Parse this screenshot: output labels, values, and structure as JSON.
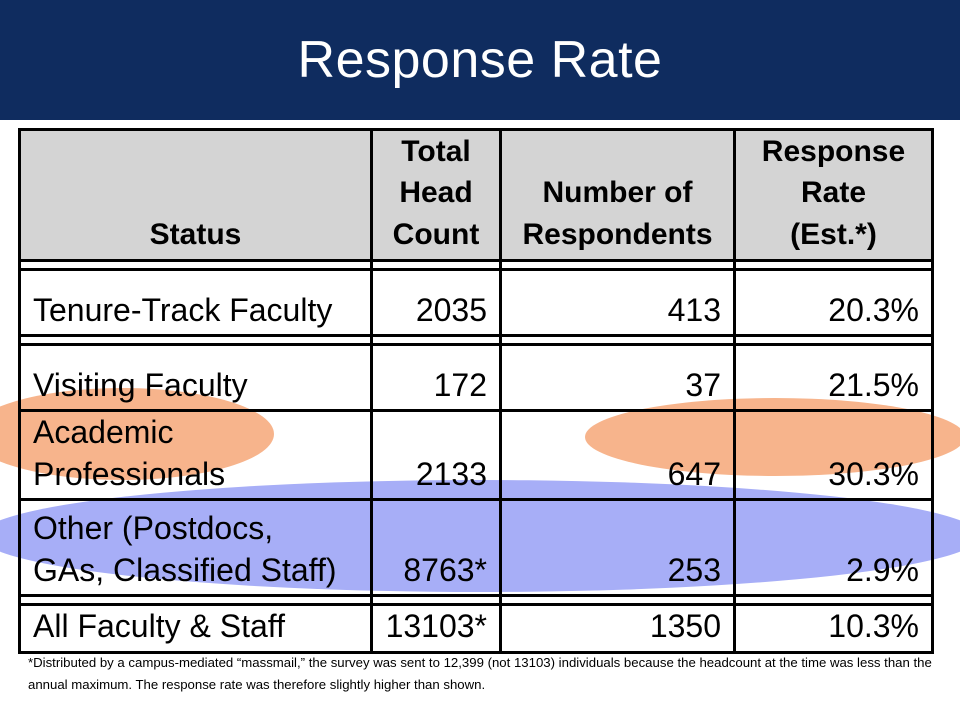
{
  "title": "Response Rate",
  "highlight_colors": {
    "orange": "#f7b48c",
    "blue": "#a7aef7",
    "title_bar": "#0f2c5f",
    "header_fill": "#d4d4d4"
  },
  "table": {
    "headers": {
      "status": "Status",
      "total_head_count": [
        "Total",
        "Head",
        "Count"
      ],
      "number_of_respondents": [
        "Number of",
        "Respondents"
      ],
      "response_rate": [
        "Response",
        "Rate",
        "(Est.*)"
      ]
    },
    "rows": [
      {
        "status": [
          "Tenure-Track Faculty"
        ],
        "head_count": "2035",
        "respondents": "413",
        "rate": "20.3%"
      },
      {
        "status": [
          "Visiting Faculty"
        ],
        "head_count": "172",
        "respondents": "37",
        "rate": "21.5%"
      },
      {
        "status": [
          "Academic",
          "Professionals"
        ],
        "head_count": "2133",
        "respondents": "647",
        "rate": "30.3%"
      },
      {
        "status": [
          "Other (Postdocs,",
          "GAs, Classified Staff)"
        ],
        "head_count": "8763*",
        "respondents": "253",
        "rate": "2.9%"
      },
      {
        "status": [
          "All Faculty & Staff"
        ],
        "head_count": "13103*",
        "respondents": "1350",
        "rate": "10.3%"
      }
    ]
  },
  "footnote": "*Distributed by a campus-mediated “massmail,” the survey was sent to 12,399 (not 13103) individuals because the headcount at the time was less than the annual maximum.  The response rate was therefore slightly higher than shown."
}
